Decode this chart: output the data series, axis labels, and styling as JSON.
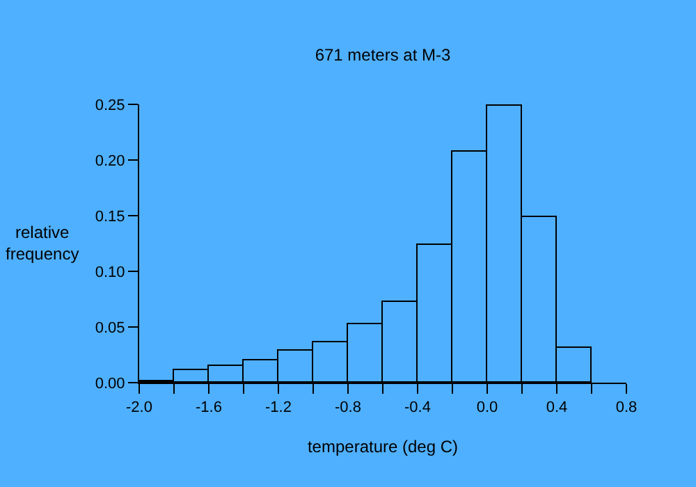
{
  "chart_data": {
    "type": "histogram",
    "title": "671 meters at M-3",
    "xlabel": "temperature (deg C)",
    "ylabel": "relative frequency",
    "bins": [
      -2.0,
      -1.8,
      -1.6,
      -1.4,
      -1.2,
      -1.0,
      -0.8,
      -0.6,
      -0.4,
      -0.2,
      0.0,
      0.2,
      0.4,
      0.6
    ],
    "values": [
      0.001,
      0.011,
      0.015,
      0.02,
      0.029,
      0.036,
      0.052,
      0.072,
      0.124,
      0.208,
      0.249,
      0.149,
      0.031
    ],
    "color": "#000000",
    "xlim": [
      -2.0,
      0.8
    ],
    "xticks": [
      {
        "value": -2.0,
        "label": "-2.0"
      },
      {
        "value": -1.8,
        "label": null
      },
      {
        "value": -1.6,
        "label": "-1.6"
      },
      {
        "value": -1.4,
        "label": null
      },
      {
        "value": -1.2,
        "label": "-1.2"
      },
      {
        "value": -1.0,
        "label": null
      },
      {
        "value": -0.8,
        "label": "-0.8"
      },
      {
        "value": -0.6,
        "label": null
      },
      {
        "value": -0.4,
        "label": "-0.4"
      },
      {
        "value": -0.2,
        "label": null
      },
      {
        "value": 0.0,
        "label": "0.0"
      },
      {
        "value": 0.2,
        "label": null
      },
      {
        "value": 0.4,
        "label": "0.4"
      },
      {
        "value": 0.6,
        "label": null
      },
      {
        "value": 0.8,
        "label": "0.8"
      }
    ],
    "ylim": [
      0,
      0.25
    ],
    "yticks": [
      {
        "value": 0,
        "label": "0.00"
      },
      {
        "value": 0.05,
        "label": "0.05"
      },
      {
        "value": 0.1,
        "label": "0.10"
      },
      {
        "value": 0.15,
        "label": "0.15"
      },
      {
        "value": 0.2,
        "label": "0.20"
      },
      {
        "value": 0.25,
        "label": "0.25"
      }
    ],
    "grid": false
  }
}
